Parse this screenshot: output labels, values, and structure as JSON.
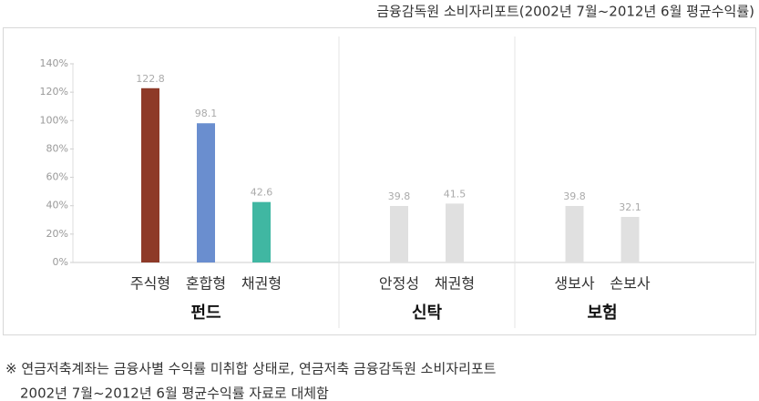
{
  "chart_data": {
    "type": "bar",
    "source": "금융감독원 소비자리포트(2002년 7월~2012년 6월 평균수익률)",
    "groups": [
      {
        "name": "펀드",
        "categories": [
          "주식형",
          "혼합형",
          "채권형"
        ],
        "values": [
          122.8,
          98.1,
          42.6
        ],
        "colors": [
          "#8e3a28",
          "#6a8ecf",
          "#40b7a2"
        ]
      },
      {
        "name": "신탁",
        "categories": [
          "안정성",
          "채권형"
        ],
        "values": [
          39.8,
          41.5
        ],
        "colors": [
          "#e0e0e0",
          "#e0e0e0"
        ]
      },
      {
        "name": "보험",
        "categories": [
          "생보사",
          "손보사"
        ],
        "values": [
          39.8,
          32.1
        ],
        "colors": [
          "#e0e0e0",
          "#e0e0e0"
        ]
      }
    ],
    "ylim": [
      0,
      140
    ],
    "yticks": [
      {
        "value": 0,
        "label": "0%"
      },
      {
        "value": 20,
        "label": "20%"
      },
      {
        "value": 40,
        "label": "40%"
      },
      {
        "value": 60,
        "label": "60%"
      },
      {
        "value": 80,
        "label": "80%"
      },
      {
        "value": 100,
        "label": "100%"
      },
      {
        "value": 120,
        "label": "120%"
      },
      {
        "value": 140,
        "label": "140%"
      }
    ],
    "notes": [
      "※ 연금저축계좌는 금융사별 수익률 미취합 상태로, 연금저축 금융감독원 소비자리포트",
      "2002년 7월~2012년 6월 평균수익률 자료로 대체함"
    ]
  }
}
